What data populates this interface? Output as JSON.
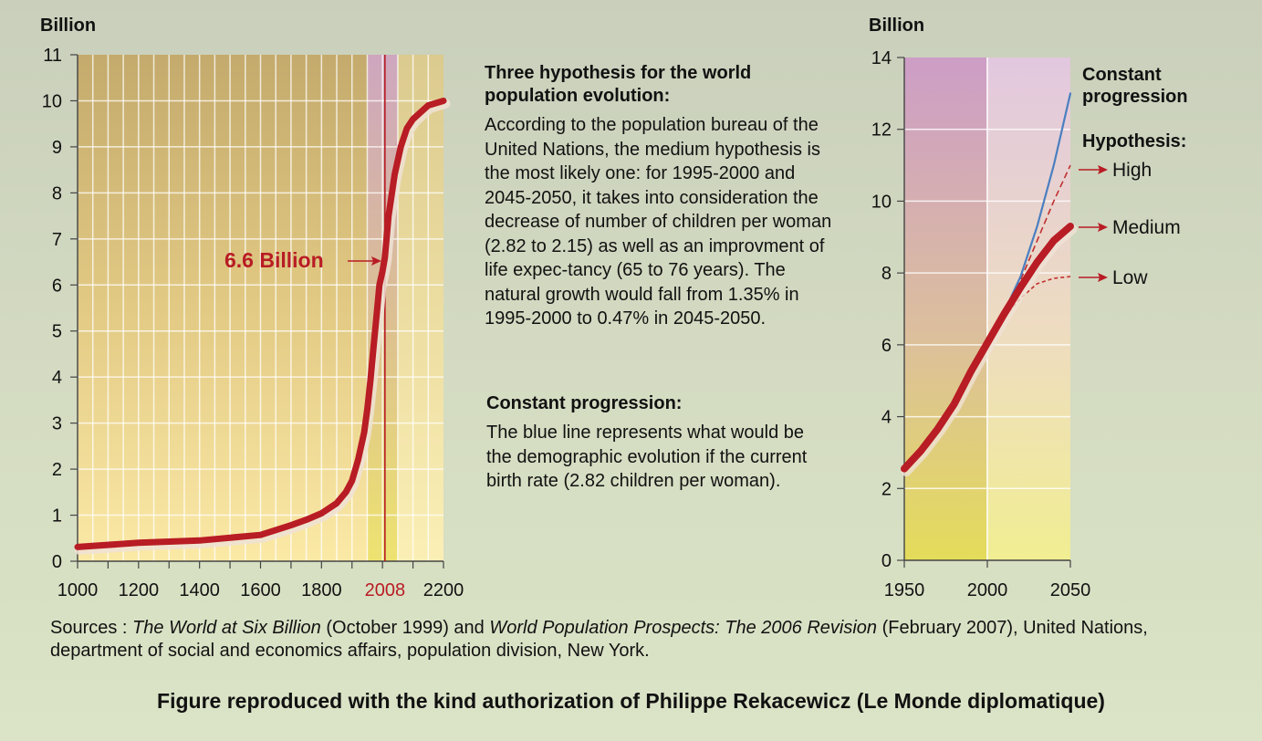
{
  "chart_data": [
    {
      "type": "line",
      "ylabel": "Billion",
      "ylim": [
        0,
        11
      ],
      "y_ticks": [
        "0",
        "1",
        "2",
        "3",
        "4",
        "5",
        "6",
        "7",
        "8",
        "9",
        "10",
        "11"
      ],
      "xlim": [
        1000,
        2200
      ],
      "x_ticks": [
        "1000",
        "1200",
        "1400",
        "1600",
        "1800",
        "2008",
        "2200"
      ],
      "highlight_year": "2008",
      "annotation": "6.6 Billion",
      "grid": true,
      "series": [
        {
          "x": [
            1000,
            1200,
            1400,
            1600,
            1700,
            1750,
            1800,
            1850,
            1880,
            1900,
            1920,
            1940,
            1950,
            1960,
            1970,
            1980,
            1990,
            2000,
            2008,
            2020,
            2040,
            2060,
            2080,
            2100,
            2150,
            2200
          ],
          "y": [
            0.31,
            0.4,
            0.45,
            0.57,
            0.78,
            0.9,
            1.04,
            1.26,
            1.5,
            1.75,
            2.2,
            2.8,
            3.3,
            3.9,
            4.6,
            5.3,
            6.0,
            6.3,
            6.6,
            7.5,
            8.4,
            9.0,
            9.4,
            9.6,
            9.9,
            10.0
          ]
        }
      ]
    },
    {
      "type": "line",
      "ylabel": "Billion",
      "ylim": [
        0,
        14
      ],
      "y_ticks": [
        "0",
        "2",
        "4",
        "6",
        "8",
        "10",
        "12",
        "14"
      ],
      "xlim": [
        1950,
        2050
      ],
      "x_ticks": [
        "1950",
        "2000",
        "2050"
      ],
      "legend_title": "Hypothesis:",
      "grid": true,
      "series": [
        {
          "name": "Constant progression",
          "color": "#4a7fc0",
          "x": [
            2000,
            2010,
            2020,
            2030,
            2040,
            2050
          ],
          "y": [
            6.1,
            6.9,
            7.9,
            9.3,
            11.0,
            13.0
          ]
        },
        {
          "name": "High",
          "color": "#c03030",
          "x": [
            2000,
            2010,
            2020,
            2030,
            2040,
            2050
          ],
          "y": [
            6.1,
            6.95,
            7.8,
            8.9,
            10.0,
            11.0
          ]
        },
        {
          "name": "Medium",
          "color": "#b81c24",
          "x": [
            1950,
            1960,
            1970,
            1980,
            1990,
            2000,
            2010,
            2020,
            2030,
            2040,
            2050
          ],
          "y": [
            2.55,
            3.05,
            3.65,
            4.35,
            5.25,
            6.05,
            6.85,
            7.6,
            8.3,
            8.9,
            9.3
          ]
        },
        {
          "name": "Low",
          "color": "#c03030",
          "x": [
            2000,
            2010,
            2020,
            2030,
            2040,
            2050
          ],
          "y": [
            6.05,
            6.75,
            7.3,
            7.7,
            7.85,
            7.9
          ]
        }
      ]
    }
  ],
  "text": {
    "hyp_title": "Three hypothesis for the world population evolution:",
    "hyp_body": "According to the population bureau of the United Nations, the medium hypothesis is the most likely one: for 1995-2000 and 2045-2050, it takes into consideration the decrease of number of children per woman (2.82 to 2.15) as well as an improvment of life expec-tancy (65 to 76 years). The natural growth would fall from 1.35% in 1995-2000 to 0.47% in 2045-2050.",
    "const_title": "Constant progression:",
    "const_body": "The blue line represents what would be the demographic evolution if the current birth rate (2.82 children per woman).",
    "sources_prefix": "Sources : ",
    "source_1": "The World at Six Billion",
    "sources_mid": " (October 1999) and ",
    "source_2": "World Population Prospects: The 2006 Revision",
    "sources_suffix": " (February 2007), United Nations, department of social and economics affairs, population division, New York.",
    "credit": "Figure reproduced with the kind authorization of Philippe Rekacewicz (Le Monde diplomatique)"
  },
  "colors": {
    "curve": "#b81c24",
    "constant": "#4a7fc0",
    "annotation": "#b81c24"
  }
}
